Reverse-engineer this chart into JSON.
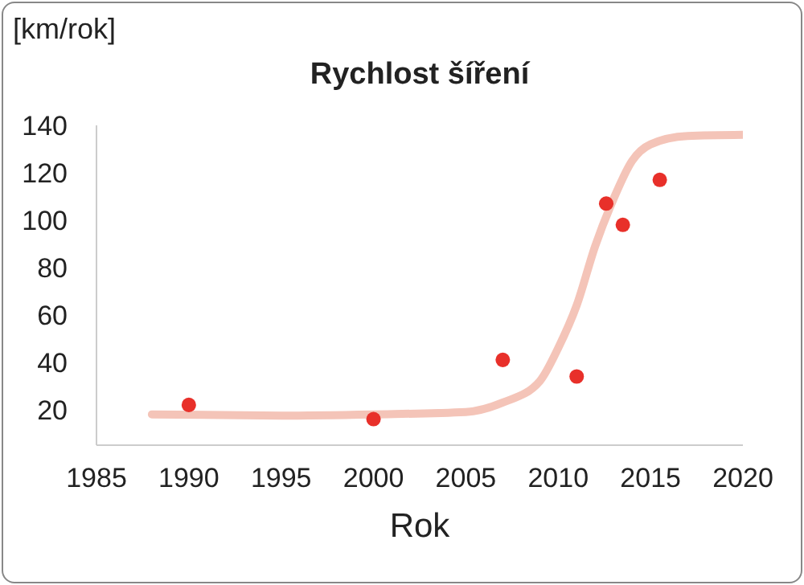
{
  "chart_data": {
    "type": "scatter",
    "title": "Rychlost šíření",
    "xlabel": "Rok",
    "ylabel": "[km/rok]",
    "xlim": [
      1985,
      2020
    ],
    "xticks": [
      1985,
      1990,
      1995,
      2000,
      2005,
      2010,
      2015,
      2020
    ],
    "ylim": [
      5,
      140
    ],
    "yticks": [
      20,
      40,
      60,
      80,
      100,
      120,
      140
    ],
    "marker": "circle",
    "series": [
      {
        "color": "#e8302a",
        "x": [
          1990,
          2000,
          2007,
          2011,
          2012.6,
          2013.5,
          2015.5
        ],
        "values": [
          22,
          16,
          41,
          34,
          107,
          98,
          117
        ]
      },
      {
        "type": "line",
        "marker": "none",
        "color": "#f4c4b8",
        "x": [
          1988,
          1995,
          2000,
          2005,
          2007,
          2009,
          2010,
          2011,
          2012,
          2013,
          2014,
          2015,
          2017,
          2020
        ],
        "values": [
          18,
          17.5,
          18,
          19,
          23,
          32,
          46,
          64,
          89,
          109,
          125,
          132,
          135.5,
          136
        ]
      }
    ]
  }
}
